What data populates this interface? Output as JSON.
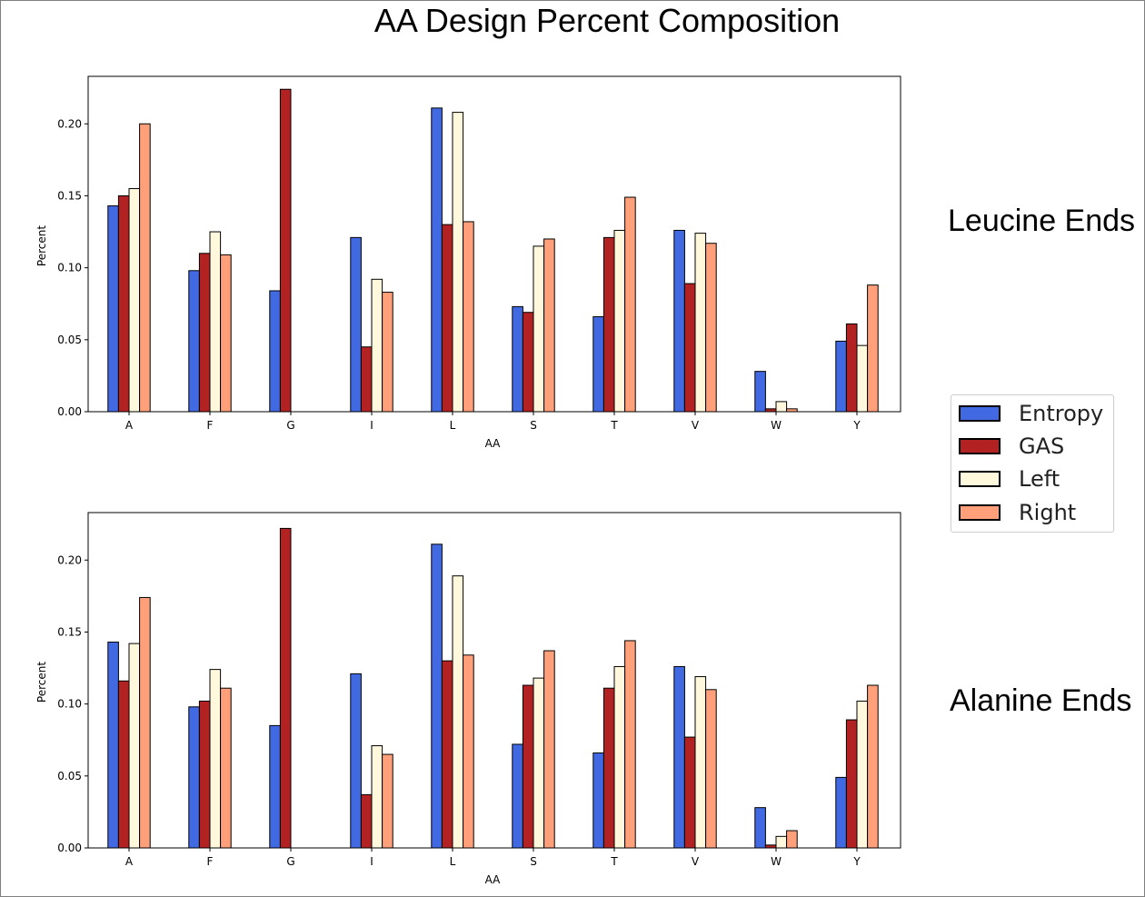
{
  "title": "AA Design Percent Composition",
  "labels": {
    "top": "Leucine Ends",
    "bottom": "Alanine Ends"
  },
  "legend": [
    {
      "name": "Entropy",
      "color": "#4169e1"
    },
    {
      "name": "GAS",
      "color": "#b22222"
    },
    {
      "name": "Left",
      "color": "#fff8dc"
    },
    {
      "name": "Right",
      "color": "#ffa07a"
    }
  ],
  "chart_data": [
    {
      "type": "bar",
      "xlabel": "AA",
      "ylabel": "Percent",
      "ylim": [
        0,
        0.233
      ],
      "yticks": [
        "0.00",
        "0.05",
        "0.10",
        "0.15",
        "0.20"
      ],
      "categories": [
        "A",
        "F",
        "G",
        "I",
        "L",
        "S",
        "T",
        "V",
        "W",
        "Y"
      ],
      "series": [
        {
          "name": "Entropy",
          "color": "#4169e1",
          "values": [
            0.143,
            0.098,
            0.084,
            0.121,
            0.211,
            0.073,
            0.066,
            0.126,
            0.028,
            0.049
          ]
        },
        {
          "name": "GAS",
          "color": "#b22222",
          "values": [
            0.15,
            0.11,
            0.224,
            0.045,
            0.13,
            0.069,
            0.121,
            0.089,
            0.002,
            0.061
          ]
        },
        {
          "name": "Left",
          "color": "#fff8dc",
          "values": [
            0.155,
            0.125,
            0.0,
            0.092,
            0.208,
            0.115,
            0.126,
            0.124,
            0.007,
            0.046
          ]
        },
        {
          "name": "Right",
          "color": "#ffa07a",
          "values": [
            0.2,
            0.109,
            0.0,
            0.083,
            0.132,
            0.12,
            0.149,
            0.117,
            0.002,
            0.088
          ]
        }
      ]
    },
    {
      "type": "bar",
      "xlabel": "AA",
      "ylabel": "Percent",
      "ylim": [
        0,
        0.233
      ],
      "yticks": [
        "0.00",
        "0.05",
        "0.10",
        "0.15",
        "0.20"
      ],
      "categories": [
        "A",
        "F",
        "G",
        "I",
        "L",
        "S",
        "T",
        "V",
        "W",
        "Y"
      ],
      "series": [
        {
          "name": "Entropy",
          "color": "#4169e1",
          "values": [
            0.143,
            0.098,
            0.085,
            0.121,
            0.211,
            0.072,
            0.066,
            0.126,
            0.028,
            0.049
          ]
        },
        {
          "name": "GAS",
          "color": "#b22222",
          "values": [
            0.116,
            0.102,
            0.222,
            0.037,
            0.13,
            0.113,
            0.111,
            0.077,
            0.002,
            0.089
          ]
        },
        {
          "name": "Left",
          "color": "#fff8dc",
          "values": [
            0.142,
            0.124,
            0.0,
            0.071,
            0.189,
            0.118,
            0.126,
            0.119,
            0.008,
            0.102
          ]
        },
        {
          "name": "Right",
          "color": "#ffa07a",
          "values": [
            0.174,
            0.111,
            0.0,
            0.065,
            0.134,
            0.137,
            0.144,
            0.11,
            0.012,
            0.113
          ]
        }
      ]
    }
  ]
}
